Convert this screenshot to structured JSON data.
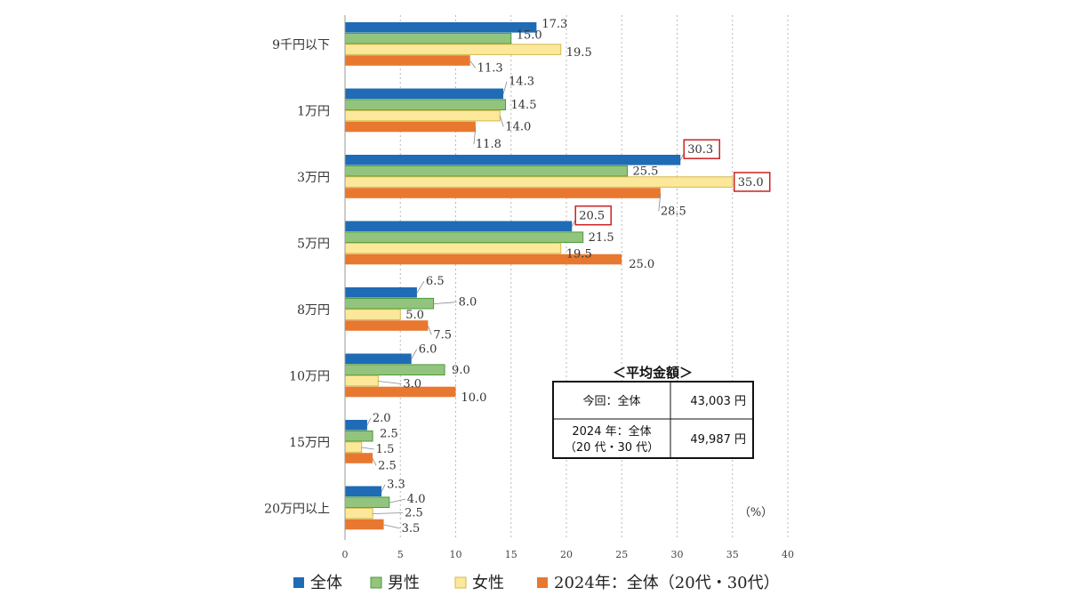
{
  "chart_data": {
    "type": "bar",
    "orientation": "horizontal",
    "categories": [
      "9千円以下",
      "1万円",
      "3万円",
      "5万円",
      "8万円",
      "10万円",
      "15万円",
      "20万円以上"
    ],
    "series": [
      {
        "name": "全体",
        "color": "#1f6bb5",
        "values": [
          17.3,
          14.3,
          30.3,
          20.5,
          6.5,
          6.0,
          2.0,
          3.3
        ]
      },
      {
        "name": "男性",
        "color": "#93c47d",
        "values": [
          15.0,
          14.5,
          25.5,
          21.5,
          8.0,
          9.0,
          2.5,
          4.0
        ]
      },
      {
        "name": "女性",
        "color": "#fce89a",
        "values": [
          19.5,
          14.0,
          35.0,
          19.5,
          5.0,
          3.0,
          1.5,
          2.5
        ]
      },
      {
        "name": "2024年：全体（20代・30代）",
        "color": "#e8782f",
        "values": [
          11.3,
          11.8,
          28.5,
          25.0,
          7.5,
          10.0,
          2.5,
          3.5
        ]
      }
    ],
    "value_labels": [
      [
        "17.3",
        "14.3",
        "30.3",
        "20.5",
        "6.5",
        "6.0",
        "2.0",
        "3.3"
      ],
      [
        "15.0",
        "14.5",
        "25.5",
        "21.5",
        "8.0",
        "9.0",
        "2.5",
        "4.0"
      ],
      [
        "19.5",
        "14.0",
        "35.0",
        "19.5",
        "5.0",
        "3.0",
        "1.5",
        "2.5"
      ],
      [
        "11.3",
        "11.8",
        "28.5",
        "25.0",
        "7.5",
        "10.0",
        "2.5",
        "3.5"
      ]
    ],
    "highlighted": [
      [
        0,
        2
      ],
      [
        0,
        3
      ],
      [
        2,
        2
      ]
    ],
    "highlight_color": "#cc2222",
    "xlim": [
      0,
      40
    ],
    "xticks": [
      0,
      5,
      10,
      15,
      20,
      25,
      30,
      35,
      40
    ],
    "xtick_labels": [
      "0",
      "5",
      "10",
      "15",
      "20",
      "25",
      "30",
      "35",
      "40"
    ],
    "unit_label": "（%）",
    "grid": "vertical-dashed",
    "legend_position": "bottom"
  },
  "summary_table": {
    "title": "＜平均金額＞",
    "rows": [
      {
        "label_lines": [
          "今回：全体"
        ],
        "value": "43,003 円"
      },
      {
        "label_lines": [
          "2024 年：全体",
          "（20 代・30 代）"
        ],
        "value": "49,987 円"
      }
    ]
  }
}
